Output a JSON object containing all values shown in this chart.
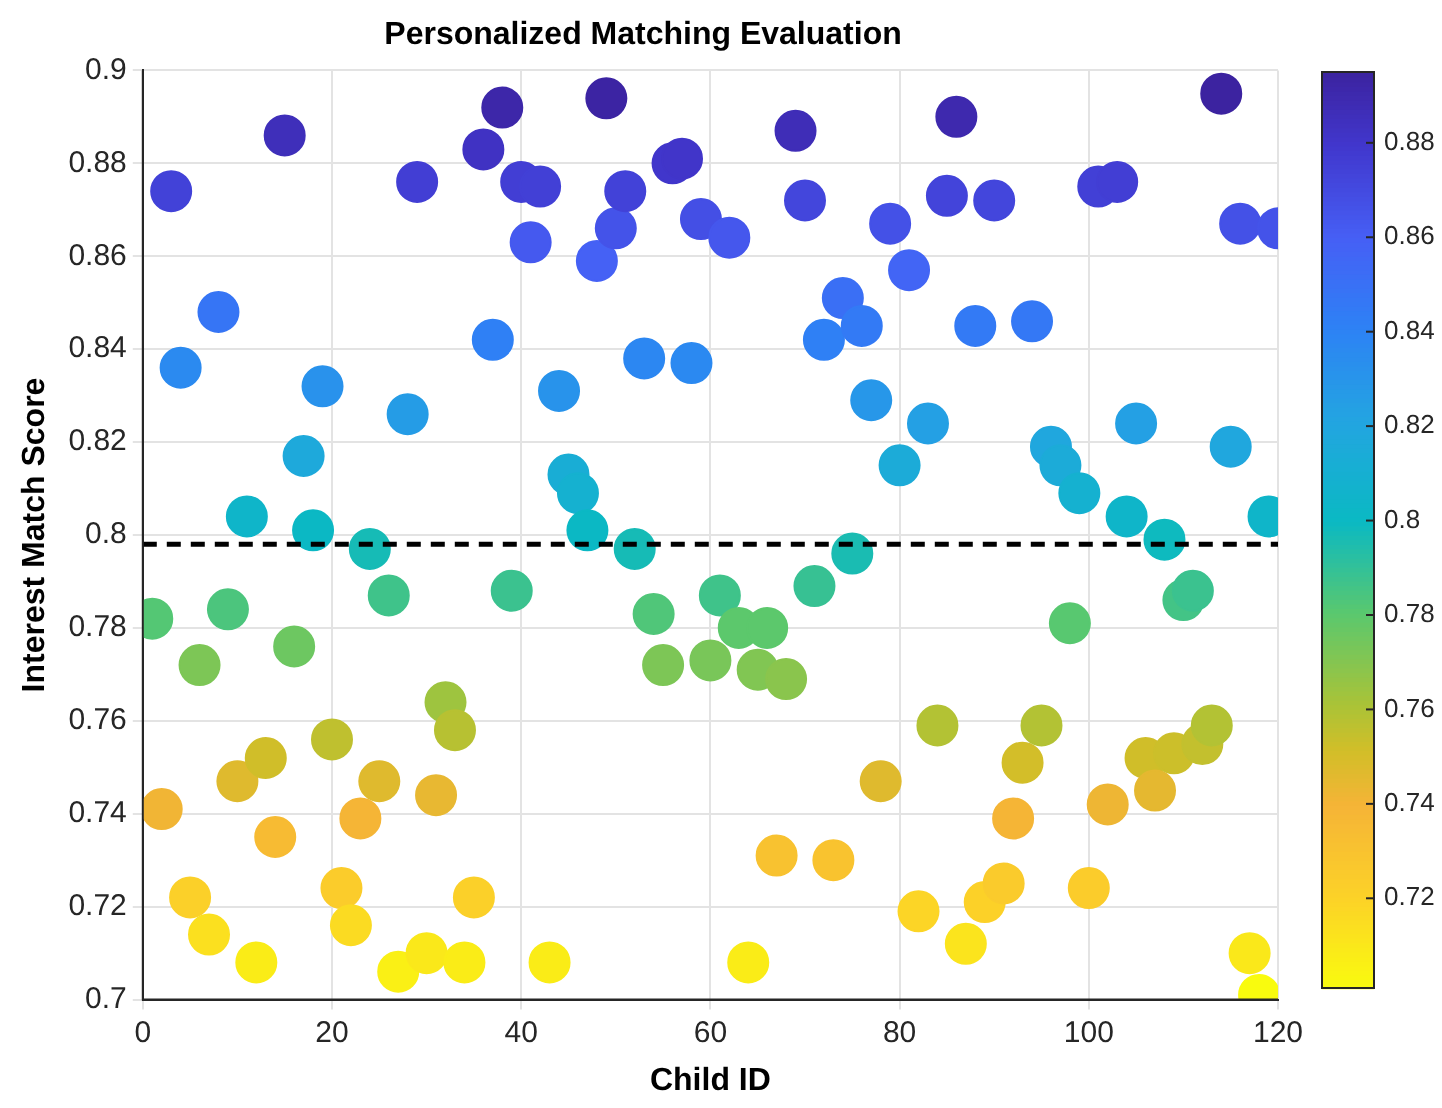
{
  "chart_data": {
    "type": "scatter",
    "title": "Personalized Matching Evaluation",
    "xlabel": "Child ID",
    "ylabel": "Interest Match Score",
    "x": [
      1,
      2,
      3,
      4,
      5,
      6,
      7,
      8,
      9,
      10,
      11,
      12,
      13,
      14,
      15,
      16,
      17,
      18,
      19,
      20,
      21,
      22,
      23,
      24,
      25,
      26,
      27,
      28,
      29,
      30,
      31,
      32,
      33,
      34,
      35,
      36,
      37,
      38,
      39,
      40,
      41,
      42,
      43,
      44,
      45,
      46,
      47,
      48,
      49,
      50,
      51,
      52,
      53,
      54,
      55,
      56,
      57,
      58,
      59,
      60,
      61,
      62,
      63,
      64,
      65,
      66,
      67,
      68,
      69,
      70,
      71,
      72,
      73,
      74,
      75,
      76,
      77,
      78,
      79,
      80,
      81,
      82,
      83,
      84,
      85,
      86,
      87,
      88,
      89,
      90,
      91,
      92,
      93,
      94,
      95,
      96,
      97,
      98,
      99,
      100,
      101,
      102,
      103,
      104,
      105,
      106,
      107,
      108,
      109,
      110,
      111,
      112,
      113,
      114,
      115,
      116,
      117,
      118,
      119,
      120
    ],
    "values": [
      0.782,
      0.741,
      0.874,
      0.836,
      0.722,
      0.772,
      0.714,
      0.848,
      0.784,
      0.747,
      0.804,
      0.708,
      0.752,
      0.735,
      0.886,
      0.776,
      0.817,
      0.801,
      0.832,
      0.756,
      0.724,
      0.716,
      0.739,
      0.797,
      0.747,
      0.787,
      0.706,
      0.826,
      0.876,
      0.71,
      0.744,
      0.764,
      0.758,
      0.708,
      0.722,
      0.883,
      0.842,
      0.892,
      0.788,
      0.876,
      0.863,
      0.875,
      0.708,
      0.831,
      0.813,
      0.809,
      0.801,
      0.859,
      0.894,
      0.866,
      0.874,
      0.797,
      0.838,
      0.783,
      0.772,
      0.88,
      0.881,
      0.837,
      0.868,
      0.773,
      0.787,
      0.864,
      0.78,
      0.708,
      0.771,
      0.78,
      0.731,
      0.769,
      0.887,
      0.872,
      0.789,
      0.842,
      0.73,
      0.851,
      0.796,
      0.845,
      0.829,
      0.747,
      0.867,
      0.815,
      0.857,
      0.719,
      0.824,
      0.759,
      0.873,
      0.89,
      0.712,
      0.845,
      0.721,
      0.872,
      0.725,
      0.739,
      0.751,
      0.846,
      0.759,
      0.819,
      0.815,
      0.781,
      0.809,
      0.724,
      0.875,
      0.742,
      0.876,
      0.804,
      0.824,
      0.752,
      0.745,
      0.799,
      0.753,
      0.786,
      0.788,
      0.755,
      0.759,
      0.895,
      0.819,
      0.867,
      0.71,
      0.701,
      0.804,
      0.866
    ],
    "cvalues": [
      0.782,
      0.741,
      0.874,
      0.836,
      0.722,
      0.772,
      0.714,
      0.848,
      0.784,
      0.747,
      0.804,
      0.708,
      0.752,
      0.735,
      0.886,
      0.776,
      0.817,
      0.801,
      0.832,
      0.756,
      0.724,
      0.716,
      0.739,
      0.797,
      0.747,
      0.787,
      0.706,
      0.826,
      0.876,
      0.71,
      0.744,
      0.764,
      0.758,
      0.708,
      0.722,
      0.883,
      0.842,
      0.892,
      0.788,
      0.876,
      0.863,
      0.875,
      0.708,
      0.831,
      0.813,
      0.809,
      0.801,
      0.859,
      0.894,
      0.866,
      0.874,
      0.797,
      0.838,
      0.783,
      0.772,
      0.88,
      0.881,
      0.837,
      0.868,
      0.773,
      0.787,
      0.864,
      0.78,
      0.708,
      0.771,
      0.78,
      0.731,
      0.769,
      0.887,
      0.872,
      0.789,
      0.842,
      0.73,
      0.851,
      0.796,
      0.845,
      0.829,
      0.747,
      0.867,
      0.815,
      0.857,
      0.719,
      0.824,
      0.759,
      0.873,
      0.89,
      0.712,
      0.845,
      0.721,
      0.872,
      0.725,
      0.739,
      0.751,
      0.846,
      0.759,
      0.819,
      0.815,
      0.781,
      0.809,
      0.724,
      0.875,
      0.742,
      0.876,
      0.804,
      0.824,
      0.752,
      0.745,
      0.799,
      0.753,
      0.786,
      0.788,
      0.755,
      0.759,
      0.895,
      0.819,
      0.867,
      0.71,
      0.701,
      0.804,
      0.866
    ],
    "xlim": [
      0,
      120
    ],
    "xticks": [
      0,
      20,
      40,
      60,
      80,
      100,
      120
    ],
    "ylim": [
      0.7,
      0.9
    ],
    "yticks": [
      0.7,
      0.72,
      0.74,
      0.76,
      0.78,
      0.8,
      0.82,
      0.84,
      0.86,
      0.88,
      0.9
    ],
    "clim": [
      0.701,
      0.895
    ],
    "cticks": [
      0.72,
      0.74,
      0.76,
      0.78,
      0.8,
      0.82,
      0.84,
      0.86,
      0.88
    ],
    "ref_lines": [
      {
        "axis": "y",
        "value": 0.798,
        "color": "#000000",
        "line_style": "dashed"
      }
    ],
    "grid": true,
    "legend": false,
    "marker": "circle"
  }
}
